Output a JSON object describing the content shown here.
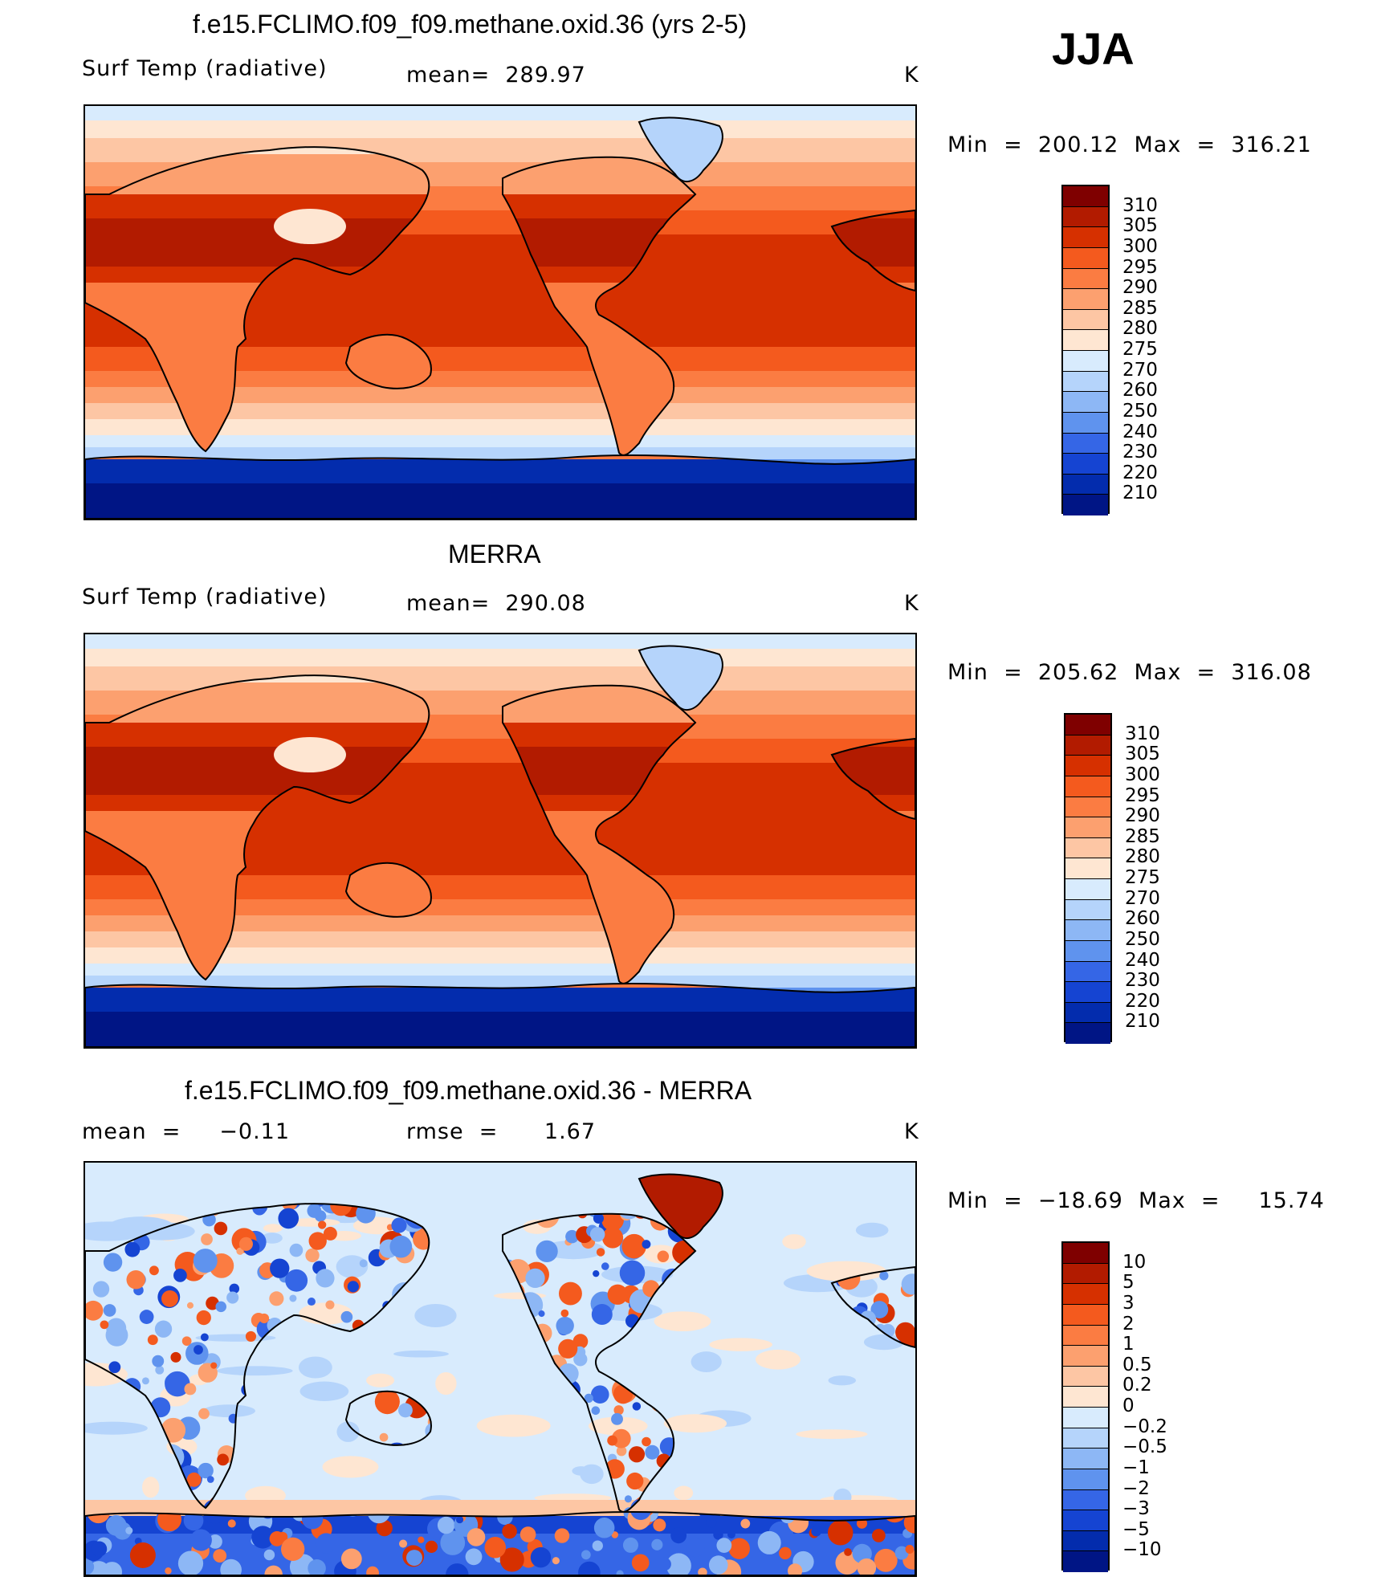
{
  "season": "JJA",
  "panels": [
    {
      "title": "f.e15.FCLIMO.f09_f09.methane.oxid.36 (yrs 2-5)",
      "left_label": "Surf Temp (radiative)",
      "mid_label": "mean=  289.97",
      "units": "K",
      "min_max": "Min  =  200.12  Max  =  316.21",
      "type": "abs",
      "colorbar": {
        "colors": [
          "#7f0000",
          "#b21b00",
          "#d63000",
          "#f45a1e",
          "#fb7c42",
          "#fca06f",
          "#fdc6a4",
          "#fee6d2",
          "#d8ebfd",
          "#b5d4fb",
          "#8db7f5",
          "#5f93ee",
          "#3566e6",
          "#1544d2",
          "#032cad",
          "#001585"
        ],
        "labels": [
          "310",
          "305",
          "300",
          "295",
          "290",
          "285",
          "280",
          "275",
          "270",
          "260",
          "250",
          "240",
          "230",
          "220",
          "210"
        ]
      }
    },
    {
      "title": "MERRA",
      "left_label": "Surf Temp (radiative)",
      "mid_label": "mean=  290.08",
      "units": "K",
      "min_max": "Min  =  205.62  Max  =  316.08",
      "type": "abs",
      "colorbar": {
        "colors": [
          "#7f0000",
          "#b21b00",
          "#d63000",
          "#f45a1e",
          "#fb7c42",
          "#fca06f",
          "#fdc6a4",
          "#fee6d2",
          "#d8ebfd",
          "#b5d4fb",
          "#8db7f5",
          "#5f93ee",
          "#3566e6",
          "#1544d2",
          "#032cad",
          "#001585"
        ],
        "labels": [
          "310",
          "305",
          "300",
          "295",
          "290",
          "285",
          "280",
          "275",
          "270",
          "260",
          "250",
          "240",
          "230",
          "220",
          "210"
        ]
      }
    },
    {
      "title": "f.e15.FCLIMO.f09_f09.methane.oxid.36 - MERRA",
      "left_label": "mean  =     −0.11",
      "mid_label": "rmse  =      1.67",
      "units": "K",
      "min_max": "Min  =  −18.69  Max  =     15.74",
      "type": "diff",
      "colorbar": {
        "colors": [
          "#7f0000",
          "#b21b00",
          "#d63000",
          "#f45a1e",
          "#fb7c42",
          "#fca06f",
          "#fdc6a4",
          "#fee6d2",
          "#d8ebfd",
          "#b5d4fb",
          "#8db7f5",
          "#5f93ee",
          "#3566e6",
          "#1544d2",
          "#032cad",
          "#001585"
        ],
        "labels": [
          "10",
          "5",
          "3",
          "2",
          "1",
          "0.5",
          "0.2",
          "0",
          "−0.2",
          "−0.5",
          "−1",
          "−2",
          "−3",
          "−5",
          "−10"
        ]
      }
    }
  ]
}
